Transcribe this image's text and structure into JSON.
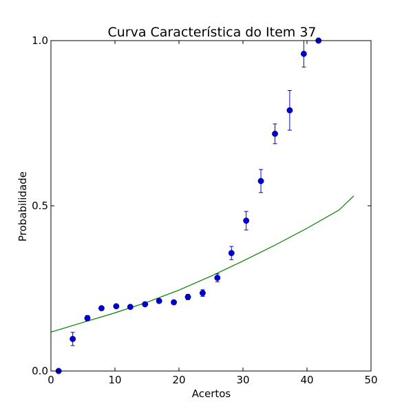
{
  "chart_data": {
    "type": "scatter",
    "title": "Curva Característica do Item 37",
    "xlabel": "Acertos",
    "ylabel": "Probabilidade",
    "xlim": [
      0,
      50
    ],
    "ylim": [
      0,
      1
    ],
    "x_ticks": [
      0,
      10,
      20,
      30,
      40,
      50
    ],
    "y_ticks": [
      0.0,
      0.5,
      1.0
    ],
    "x_tick_labels": [
      "0",
      "10",
      "20",
      "30",
      "40",
      "50"
    ],
    "y_tick_labels": [
      "0.0",
      "0.5",
      "1.0"
    ],
    "grid": false,
    "points": {
      "color": "#0000cc",
      "x": [
        1.2,
        3.4,
        5.7,
        7.9,
        10.2,
        12.4,
        14.7,
        16.9,
        19.2,
        21.4,
        23.7,
        26.0,
        28.2,
        30.5,
        32.8,
        35.0,
        37.3,
        39.5,
        41.8
      ],
      "y": [
        0.0,
        0.097,
        0.16,
        0.19,
        0.196,
        0.194,
        0.202,
        0.212,
        0.208,
        0.224,
        0.236,
        0.282,
        0.357,
        0.455,
        0.575,
        0.718,
        0.789,
        0.96,
        1.0
      ],
      "err": [
        0.0,
        0.02,
        0.008,
        0.005,
        0.005,
        0.005,
        0.005,
        0.006,
        0.006,
        0.008,
        0.01,
        0.012,
        0.02,
        0.028,
        0.035,
        0.03,
        0.06,
        0.04,
        0.0
      ]
    },
    "curve": {
      "color": "#008000",
      "x": [
        0,
        5,
        10,
        15,
        20,
        25,
        30,
        35,
        40,
        45,
        47.3
      ],
      "y": [
        0.118,
        0.147,
        0.176,
        0.208,
        0.245,
        0.287,
        0.333,
        0.381,
        0.432,
        0.487,
        0.53
      ]
    }
  }
}
